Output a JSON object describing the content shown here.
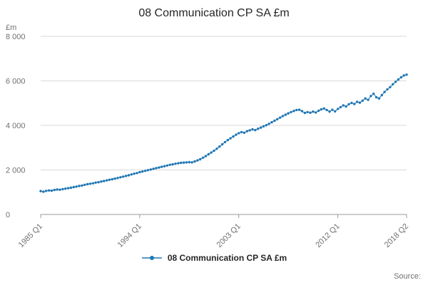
{
  "page": {
    "title": "08 Communication CP SA £m",
    "source_label": "Source:"
  },
  "legend": {
    "label": "08 Communication CP SA £m"
  },
  "colors": {
    "line": "#1f77b4",
    "grid": "#d9d9d9",
    "axis": "#9a9a9a",
    "tick_text": "#707070",
    "title_text": "#262626"
  },
  "chart_data": {
    "type": "line",
    "title": "08 Communication CP SA £m",
    "unit_label": "£m",
    "x_start": "1985 Q1",
    "x_end": "2018 Q2",
    "frequency": "quarterly",
    "ylim": [
      0,
      8000
    ],
    "grid": true,
    "legend_position": "bottom",
    "y_ticks": [
      {
        "value": 0,
        "label": "0"
      },
      {
        "value": 2000,
        "label": "2 000"
      },
      {
        "value": 4000,
        "label": "4 000"
      },
      {
        "value": 6000,
        "label": "6 000"
      },
      {
        "value": 8000,
        "label": "8 000"
      }
    ],
    "x_ticks": [
      {
        "index": 0,
        "label": "1985 Q1"
      },
      {
        "index": 36,
        "label": "1994 Q1"
      },
      {
        "index": 72,
        "label": "2003 Q1"
      },
      {
        "index": 108,
        "label": "2012 Q1"
      },
      {
        "index": 133,
        "label": "2018 Q2"
      }
    ],
    "series": [
      {
        "name": "08 Communication CP SA £m",
        "color": "#1f77b4",
        "marker": "circle",
        "values": [
          1050,
          1020,
          1060,
          1080,
          1070,
          1100,
          1120,
          1110,
          1140,
          1160,
          1180,
          1200,
          1230,
          1250,
          1280,
          1300,
          1330,
          1360,
          1380,
          1400,
          1430,
          1450,
          1480,
          1500,
          1530,
          1560,
          1580,
          1610,
          1640,
          1670,
          1700,
          1730,
          1760,
          1800,
          1830,
          1860,
          1900,
          1930,
          1960,
          1990,
          2020,
          2050,
          2080,
          2110,
          2140,
          2170,
          2200,
          2230,
          2250,
          2280,
          2300,
          2320,
          2330,
          2340,
          2350,
          2340,
          2380,
          2430,
          2480,
          2550,
          2620,
          2700,
          2780,
          2860,
          2950,
          3050,
          3150,
          3250,
          3340,
          3420,
          3500,
          3580,
          3650,
          3700,
          3670,
          3740,
          3780,
          3820,
          3790,
          3850,
          3900,
          3960,
          4010,
          4070,
          4140,
          4210,
          4280,
          4350,
          4420,
          4480,
          4540,
          4600,
          4650,
          4690,
          4700,
          4640,
          4560,
          4600,
          4570,
          4620,
          4580,
          4660,
          4720,
          4760,
          4690,
          4620,
          4700,
          4630,
          4740,
          4820,
          4900,
          4850,
          4950,
          5010,
          4960,
          5060,
          5020,
          5110,
          5210,
          5150,
          5320,
          5420,
          5260,
          5210,
          5360,
          5500,
          5620,
          5720,
          5850,
          5960,
          6060,
          6160,
          6240,
          6280
        ]
      }
    ]
  }
}
